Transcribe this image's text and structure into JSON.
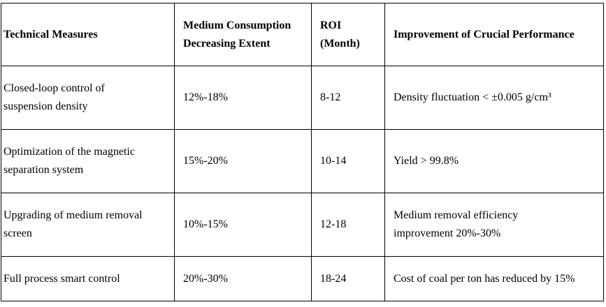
{
  "table": {
    "headers": [
      "Technical Measures",
      "Medium Consumption Decreasing Extent",
      "ROI (Month)",
      "Improvement of Crucial Performance"
    ],
    "rows": [
      [
        "Closed-loop control of suspension density",
        "12%-18%",
        "8-12",
        "Density fluctuation < ±0.005 g/cm³"
      ],
      [
        "Optimization of the magnetic separation system",
        "15%-20%",
        "10-14",
        "Yield > 99.8%"
      ],
      [
        "Upgrading of medium removal screen",
        "10%-15%",
        "12-18",
        "Medium removal efficiency improvement 20%-30%"
      ],
      [
        "Full process smart control",
        "20%-30%",
        "18-24",
        "Cost of coal per ton has reduced by 15%"
      ]
    ]
  }
}
